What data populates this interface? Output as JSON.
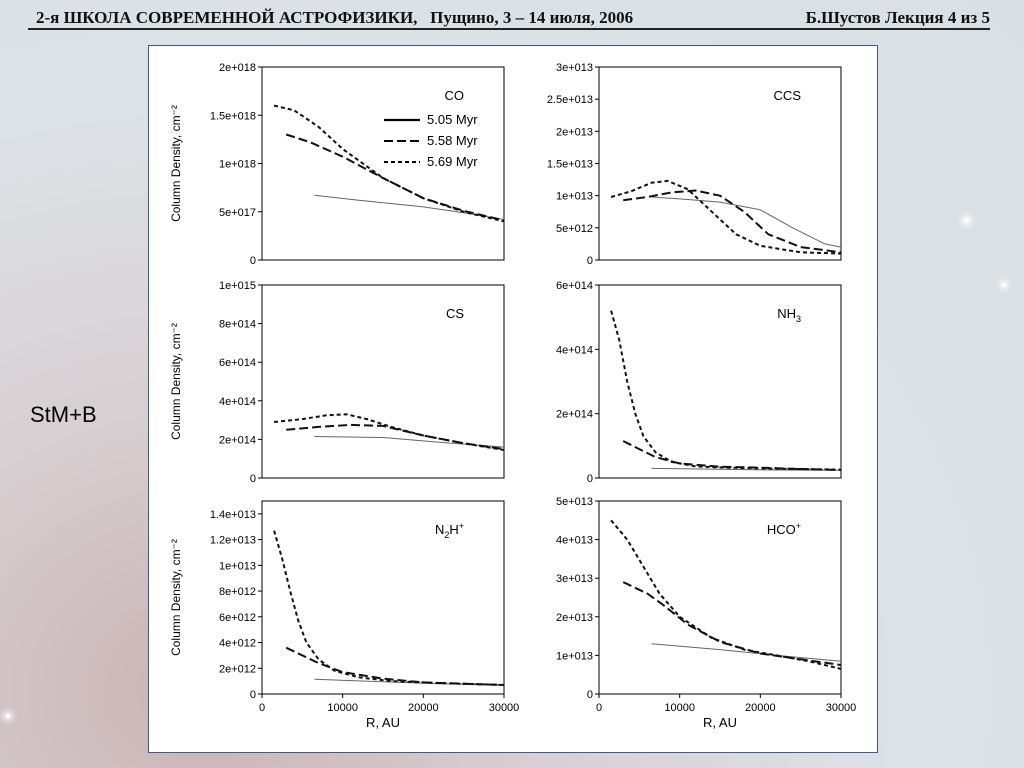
{
  "header": {
    "left": "2-я ШКОЛА СОВРЕМЕННОЙ АСТРОФИЗИКИ,   Пущино, 3 – 14 июля, 2006",
    "right": "Б.Шустов Лекция 4 из 5"
  },
  "side_label": "StM+B",
  "colors": {
    "figure_border": "#3a5a9a",
    "axes": "#000000",
    "thin_line": "#666666"
  },
  "chart_data": [
    {
      "type": "line",
      "title": "CO",
      "ylabel": "Column Density, cm⁻²",
      "xlabel": "",
      "xlim": [
        0,
        30000
      ],
      "ylim": [
        0,
        2e+18
      ],
      "yticks": [
        "0",
        "5e+017",
        "1e+018",
        "1.5e+018",
        "2e+018"
      ],
      "xticks": [],
      "legend_position": "top-right",
      "series": [
        {
          "name": "5.05 Myr",
          "style": "thin-solid",
          "x": [
            6500,
            12000,
            20000,
            25000,
            30000
          ],
          "y": [
            6.7e+17,
            6.2e+17,
            5.5e+17,
            4.9e+17,
            4.2e+17
          ]
        },
        {
          "name": "5.58 Myr",
          "style": "long-dash",
          "x": [
            3000,
            6000,
            10000,
            15000,
            20000,
            25000,
            30000
          ],
          "y": [
            1.3e+18,
            1.22e+18,
            1.07e+18,
            8.5e+17,
            6.4e+17,
            5.1e+17,
            4.1e+17
          ]
        },
        {
          "name": "5.69 Myr",
          "style": "short-dash",
          "x": [
            1500,
            4000,
            7000,
            10000,
            15000,
            20000,
            25000,
            30000
          ],
          "y": [
            1.6e+18,
            1.55e+18,
            1.38e+18,
            1.15e+18,
            8.5e+17,
            6.4e+17,
            5e+17,
            4e+17
          ]
        }
      ]
    },
    {
      "type": "line",
      "title": "CCS",
      "ylabel": "",
      "xlabel": "",
      "xlim": [
        0,
        30000
      ],
      "ylim": [
        0,
        30000000000000.0
      ],
      "yticks": [
        "0",
        "5e+012",
        "1e+013",
        "1.5e+013",
        "2e+013",
        "2.5e+013",
        "3e+013"
      ],
      "xticks": [],
      "series": [
        {
          "style": "thin-solid",
          "x": [
            6500,
            10000,
            15000,
            20000,
            24000,
            28000,
            30000
          ],
          "y": [
            9800000000000.0,
            9500000000000.0,
            9000000000000.0,
            7800000000000.0,
            5000000000000.0,
            2500000000000.0,
            2000000000000.0
          ]
        },
        {
          "style": "long-dash",
          "x": [
            3000,
            6000,
            9000,
            12000,
            15000,
            18000,
            21000,
            25000,
            30000
          ],
          "y": [
            9300000000000.0,
            9800000000000.0,
            10500000000000.0,
            10800000000000.0,
            10000000000000.0,
            7500000000000.0,
            4000000000000.0,
            2000000000000.0,
            1200000000000.0
          ]
        },
        {
          "style": "short-dash",
          "x": [
            1500,
            4000,
            6500,
            8500,
            11000,
            14000,
            17000,
            20000,
            25000,
            30000
          ],
          "y": [
            9800000000000.0,
            10700000000000.0,
            12000000000000.0,
            12300000000000.0,
            11000000000000.0,
            7500000000000.0,
            4000000000000.0,
            2200000000000.0,
            1200000000000.0,
            1000000000000.0
          ]
        }
      ]
    },
    {
      "type": "line",
      "title": "CS",
      "ylabel": "Column Density, cm⁻²",
      "xlabel": "",
      "xlim": [
        0,
        30000
      ],
      "ylim": [
        0,
        1000000000000000.0
      ],
      "yticks": [
        "0",
        "2e+014",
        "4e+014",
        "6e+014",
        "8e+014",
        "1e+015"
      ],
      "xticks": [],
      "series": [
        {
          "style": "thin-solid",
          "x": [
            6500,
            15000,
            22000,
            30000
          ],
          "y": [
            215000000000000.0,
            210000000000000.0,
            185000000000000.0,
            160000000000000.0
          ]
        },
        {
          "style": "long-dash",
          "x": [
            3000,
            7000,
            11000,
            15000,
            20000,
            25000,
            30000
          ],
          "y": [
            250000000000000.0,
            265000000000000.0,
            275000000000000.0,
            270000000000000.0,
            220000000000000.0,
            180000000000000.0,
            150000000000000.0
          ]
        },
        {
          "style": "short-dash",
          "x": [
            1500,
            5000,
            8000,
            10500,
            13000,
            16000,
            20000,
            25000,
            30000
          ],
          "y": [
            290000000000000.0,
            305000000000000.0,
            325000000000000.0,
            330000000000000.0,
            305000000000000.0,
            265000000000000.0,
            220000000000000.0,
            180000000000000.0,
            145000000000000.0
          ]
        }
      ]
    },
    {
      "type": "line",
      "title": "NH3",
      "ylabel": "",
      "xlabel": "",
      "xlim": [
        0,
        30000
      ],
      "ylim": [
        0,
        600000000000000.0
      ],
      "yticks": [
        "0",
        "2e+014",
        "4e+014",
        "6e+014"
      ],
      "xticks": [],
      "series": [
        {
          "style": "thin-solid",
          "x": [
            6500,
            15000,
            22000,
            30000
          ],
          "y": [
            30000000000000.0,
            27000000000000.0,
            25000000000000.0,
            24000000000000.0
          ]
        },
        {
          "style": "long-dash",
          "x": [
            3000,
            5000,
            7000,
            10000,
            15000,
            20000,
            25000,
            30000
          ],
          "y": [
            115000000000000.0,
            90000000000000.0,
            65000000000000.0,
            45000000000000.0,
            35000000000000.0,
            32000000000000.0,
            28000000000000.0,
            25000000000000.0
          ]
        },
        {
          "style": "short-dash",
          "x": [
            1500,
            2500,
            3500,
            4500,
            5500,
            7000,
            9000,
            12000,
            16000,
            22000,
            30000
          ],
          "y": [
            520000000000000.0,
            430000000000000.0,
            300000000000000.0,
            200000000000000.0,
            130000000000000.0,
            80000000000000.0,
            50000000000000.0,
            36000000000000.0,
            32000000000000.0,
            29000000000000.0,
            26000000000000.0
          ]
        }
      ]
    },
    {
      "type": "line",
      "title": "N2H+",
      "ylabel": "Column Density, cm⁻²",
      "xlabel": "R, AU",
      "xlim": [
        0,
        30000
      ],
      "ylim": [
        0,
        15000000000000.0
      ],
      "yticks": [
        "0",
        "2e+012",
        "4e+012",
        "6e+012",
        "8e+012",
        "1e+013",
        "1.2e+013",
        "1.4e+013"
      ],
      "xticks": [
        "0",
        "10000",
        "20000",
        "30000"
      ],
      "series": [
        {
          "style": "thin-solid",
          "x": [
            6500,
            15000,
            22000,
            30000
          ],
          "y": [
            1150000000000.0,
            950000000000.0,
            800000000000.0,
            700000000000.0
          ]
        },
        {
          "style": "long-dash",
          "x": [
            3000,
            5000,
            7000,
            10000,
            15000,
            20000,
            25000,
            30000
          ],
          "y": [
            3600000000000.0,
            3000000000000.0,
            2400000000000.0,
            1700000000000.0,
            1200000000000.0,
            900000000000.0,
            800000000000.0,
            700000000000.0
          ]
        },
        {
          "style": "short-dash",
          "x": [
            1500,
            2500,
            3500,
            4500,
            5500,
            7000,
            9000,
            12000,
            16000,
            22000,
            30000
          ],
          "y": [
            12700000000000.0,
            10500000000000.0,
            8000000000000.0,
            5700000000000.0,
            4000000000000.0,
            2700000000000.0,
            1800000000000.0,
            1300000000000.0,
            1000000000000.0,
            850000000000.0,
            700000000000.0
          ]
        }
      ]
    },
    {
      "type": "line",
      "title": "HCO+",
      "ylabel": "",
      "xlabel": "R, AU",
      "xlim": [
        0,
        30000
      ],
      "ylim": [
        0,
        50000000000000.0
      ],
      "yticks": [
        "0",
        "1e+013",
        "2e+013",
        "3e+013",
        "4e+013",
        "5e+013"
      ],
      "xticks": [
        "0",
        "10000",
        "20000",
        "30000"
      ],
      "series": [
        {
          "style": "thin-solid",
          "x": [
            6500,
            15000,
            22000,
            30000
          ],
          "y": [
            13000000000000.0,
            11500000000000.0,
            10000000000000.0,
            8500000000000.0
          ]
        },
        {
          "style": "long-dash",
          "x": [
            3000,
            6000,
            8000,
            11000,
            15000,
            20000,
            25000,
            30000
          ],
          "y": [
            29000000000000.0,
            26000000000000.0,
            23000000000000.0,
            18000000000000.0,
            13500000000000.0,
            10500000000000.0,
            9000000000000.0,
            7500000000000.0
          ]
        },
        {
          "style": "short-dash",
          "x": [
            1500,
            3500,
            5500,
            7500,
            10000,
            14000,
            18000,
            22000,
            26000,
            30000
          ],
          "y": [
            45000000000000.0,
            40000000000000.0,
            33000000000000.0,
            26000000000000.0,
            20000000000000.0,
            14500000000000.0,
            11500000000000.0,
            10000000000000.0,
            8500000000000.0,
            6500000000000.0
          ]
        }
      ]
    }
  ]
}
